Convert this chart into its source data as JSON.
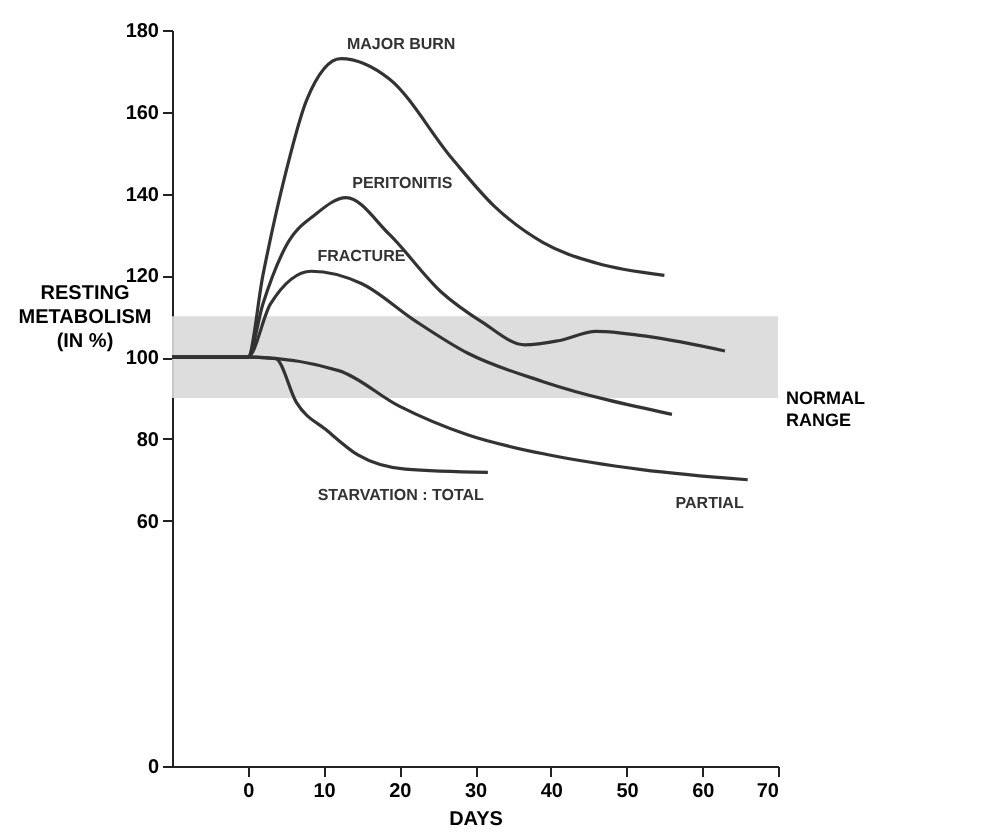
{
  "chart_data": {
    "type": "line",
    "xlabel": "DAYS",
    "ylabel": "RESTING METABOLISM (IN %)",
    "xlim": [
      -10,
      70
    ],
    "xticks": [
      0,
      10,
      20,
      30,
      40,
      50,
      60,
      70
    ],
    "ylim": [
      0,
      180
    ],
    "yticks": [
      0,
      60,
      80,
      100,
      120,
      140,
      160,
      180
    ],
    "grid": false,
    "marker": "none",
    "line_style": "solid",
    "bands": [
      {
        "axis": "y",
        "from": 90,
        "to": 110,
        "label": "NORMAL RANGE",
        "color": "#d9d9d9"
      }
    ],
    "series": [
      {
        "name": "MAJOR BURN",
        "color": "#333333",
        "x": [
          -10,
          0,
          2,
          5,
          7.8,
          12.3,
          18.7,
          27,
          32.5,
          39,
          46,
          55
        ],
        "values": [
          100,
          100,
          120,
          145,
          163,
          173,
          168,
          148.5,
          137,
          128,
          123,
          120
        ]
      },
      {
        "name": "PERITONITIS",
        "color": "#333333",
        "x": [
          -10,
          0,
          2,
          5,
          9,
          13,
          18.7,
          25.5,
          31,
          36.6,
          41,
          46,
          53,
          63
        ],
        "values": [
          100,
          100,
          113,
          127,
          135,
          139,
          130,
          116,
          108.5,
          103,
          104,
          106.3,
          105,
          101.5
        ]
      },
      {
        "name": "FRACTURE",
        "color": "#333333",
        "x": [
          -10,
          0,
          3,
          8.4,
          15,
          22,
          29,
          39,
          56
        ],
        "values": [
          100,
          100,
          113,
          121,
          118,
          109,
          101,
          94,
          86
        ]
      },
      {
        "name": "STARVATION : TOTAL",
        "color": "#333333",
        "x": [
          -10,
          0,
          3.7,
          6.4,
          10.5,
          14.6,
          20.8,
          31.7
        ],
        "values": [
          100,
          100,
          99.6,
          89,
          82,
          76,
          72.6,
          71.8
        ]
      },
      {
        "name": "PARTIAL",
        "color": "#333333",
        "x": [
          -10,
          0,
          12,
          20,
          29,
          40,
          52,
          66
        ],
        "values": [
          100,
          100,
          96.7,
          88,
          81,
          76,
          72.5,
          70
        ]
      }
    ]
  }
}
